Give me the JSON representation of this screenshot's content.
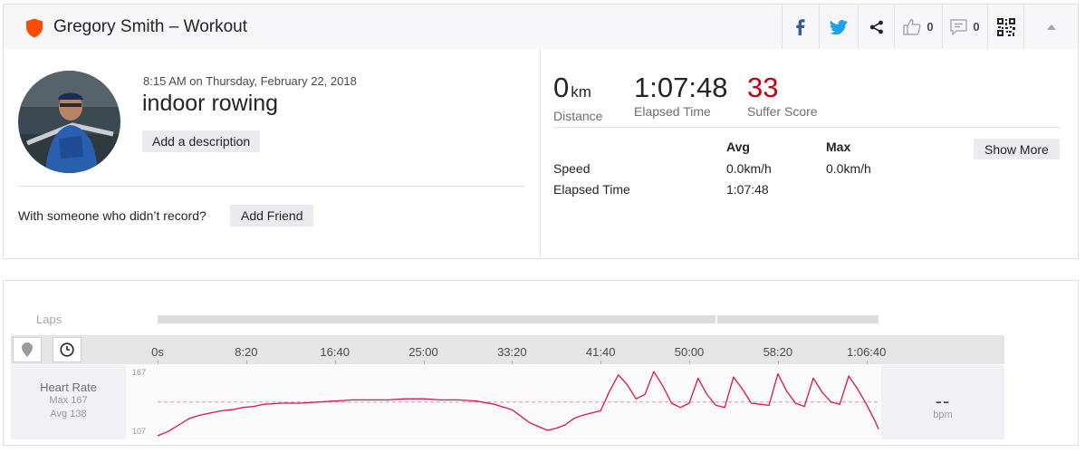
{
  "header": {
    "title": "Gregory Smith – Workout",
    "brand_color": "#fc4c02",
    "share_icons": [
      "facebook-icon",
      "twitter-icon",
      "share-icon"
    ],
    "kudos_count": "0",
    "comment_count": "0"
  },
  "activity": {
    "datetime": "8:15 AM on Thursday, February 22, 2018",
    "name": "indoor rowing",
    "add_description_label": "Add a description",
    "with_someone_text": "With someone who didn’t record?",
    "add_friend_label": "Add Friend"
  },
  "stats": {
    "distance_value": "0",
    "distance_unit": "km",
    "distance_label": "Distance",
    "elapsed_value": "1:07:48",
    "elapsed_label": "Elapsed Time",
    "suffer_value": "33",
    "suffer_label": "Suffer Score",
    "suffer_color": "#c2001a"
  },
  "details_table": {
    "col_avg": "Avg",
    "col_max": "Max",
    "show_more_label": "Show More",
    "rows": [
      {
        "label": "Speed",
        "avg": "0.0km/h",
        "max": "0.0km/h"
      },
      {
        "label": "Elapsed Time",
        "avg": "1:07:48",
        "max": ""
      }
    ]
  },
  "chart": {
    "laps_label": "Laps",
    "x_ticks": [
      "0s",
      "8:20",
      "16:40",
      "25:00",
      "33:20",
      "41:40",
      "50:00",
      "58:20",
      "1:06:40"
    ],
    "hr_label": "Heart Rate",
    "hr_max_text": "Max 167",
    "hr_avg_text": "Avg 138",
    "y_max_label": "167",
    "y_min_label": "107",
    "current_value": "--",
    "unit": "bpm",
    "line_color": "#e0114b"
  },
  "chart_data": {
    "type": "line",
    "title": "",
    "xlabel": "",
    "ylabel": "",
    "x_unit": "seconds",
    "x_range": [
      0,
      4068
    ],
    "y_range": [
      107,
      167
    ],
    "avg_line": 138,
    "laps": [
      {
        "start": 0,
        "end": 3146
      },
      {
        "start": 3160,
        "end": 4068
      }
    ],
    "series": [
      {
        "x": [
          0,
          60,
          120,
          180,
          240,
          300,
          360,
          420,
          480,
          540,
          600,
          700,
          800,
          900,
          1000,
          1100,
          1200,
          1300,
          1400,
          1500,
          1600,
          1700,
          1800,
          1900,
          2000,
          2100,
          2200,
          2250,
          2300,
          2350,
          2400,
          2450,
          2500,
          2550,
          2600,
          2650,
          2700,
          2750,
          2800,
          2850,
          2900,
          2950,
          3000,
          3050,
          3100,
          3150,
          3200,
          3250,
          3300,
          3350,
          3400,
          3450,
          3500,
          3550,
          3600,
          3650,
          3700,
          3750,
          3800,
          3850,
          3900,
          3950,
          4000,
          4050,
          4068
        ],
        "y": [
          107,
          111,
          117,
          123,
          126,
          128,
          130,
          131,
          133,
          134,
          136,
          137,
          137,
          138,
          139,
          140,
          140,
          140,
          141,
          141,
          140,
          140,
          139,
          136,
          131,
          119,
          112,
          114,
          117,
          123,
          126,
          128,
          130,
          148,
          163,
          154,
          141,
          145,
          166,
          153,
          137,
          133,
          137,
          160,
          145,
          135,
          133,
          161,
          150,
          137,
          136,
          135,
          164,
          148,
          137,
          134,
          160,
          147,
          138,
          136,
          162,
          150,
          136,
          120,
          113
        ]
      }
    ]
  }
}
